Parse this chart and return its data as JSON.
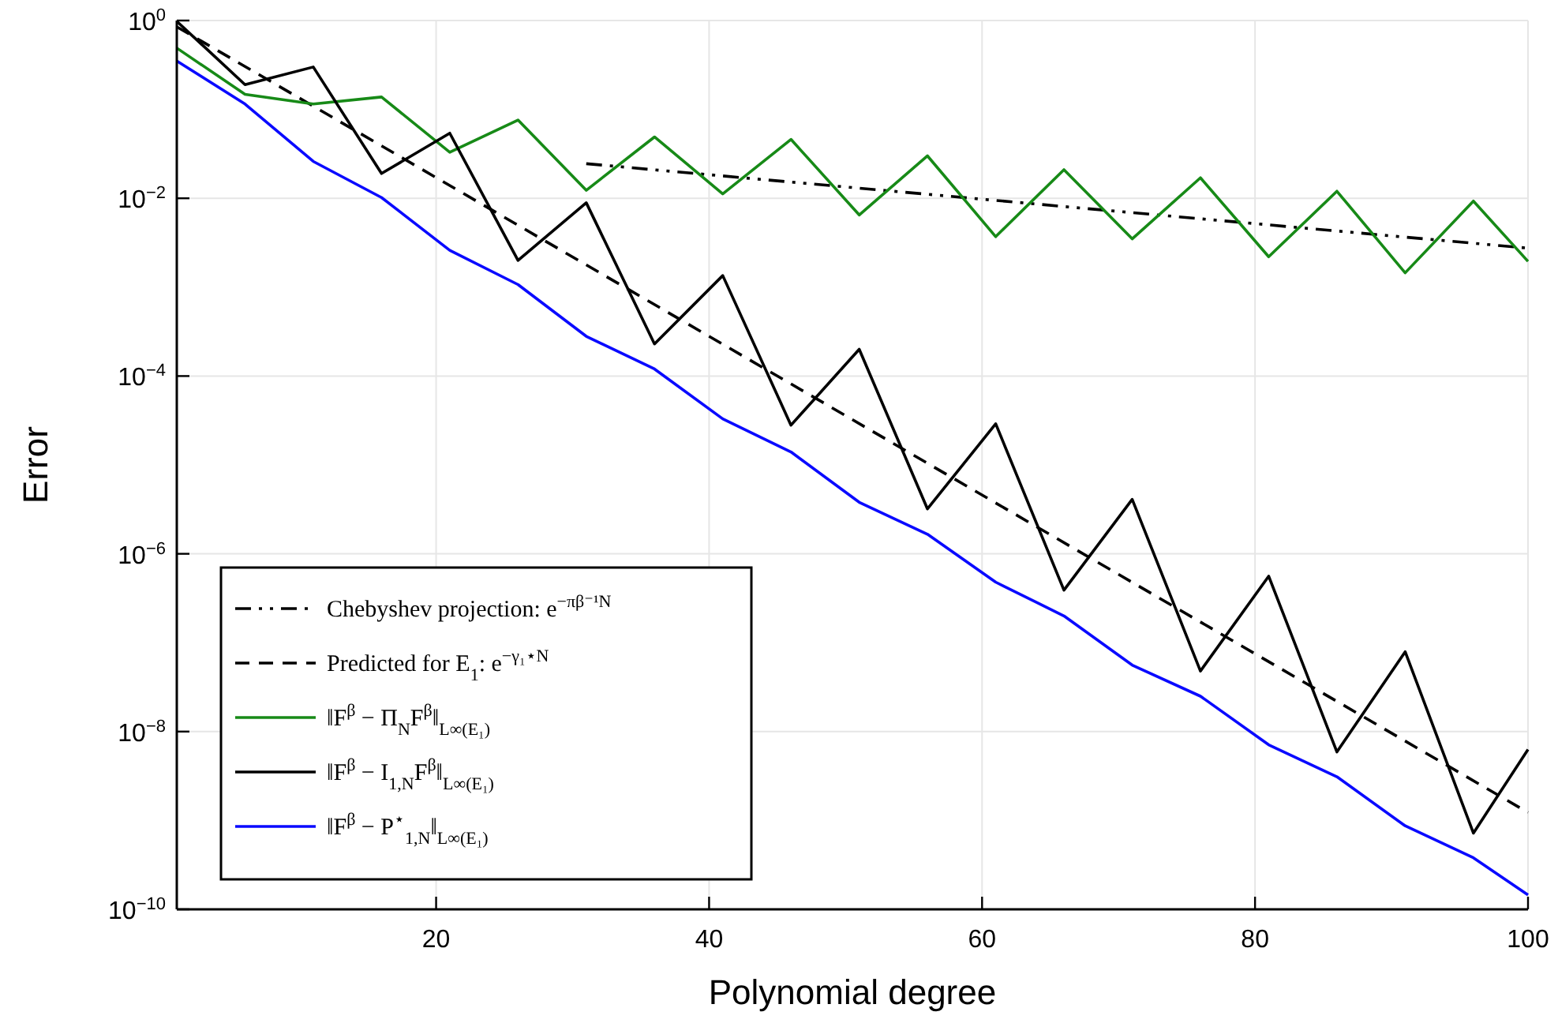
{
  "chart_data": {
    "type": "line",
    "xlabel": "Polynomial degree",
    "ylabel": "Error",
    "log": "y",
    "grid": true,
    "legend": "bottom left",
    "xlim": [
      1,
      100
    ],
    "xticks": [
      20,
      40,
      60,
      80,
      100
    ],
    "ylim": [
      1e-10,
      1
    ],
    "yticks": [
      {
        "value": 1e-10,
        "label": "10$^{−10}$"
      },
      {
        "value": 1e-08,
        "label": "10$^{−8}$"
      },
      {
        "value": 1e-06,
        "label": "10$^{−6}$"
      },
      {
        "value": 0.0001,
        "label": "10$^{−4}$"
      },
      {
        "value": 0.01,
        "label": "10$^{−2}$"
      },
      {
        "value": 1,
        "label": "10$^{0}$"
      }
    ],
    "series": [
      {
        "name": "Chebyshev projection: e$^{−πβ⁻¹N}$",
        "color": "#000000",
        "line_style": "dashdot",
        "x": [
          31,
          100
        ],
        "values": [
          0.0245,
          0.00275
        ]
      },
      {
        "name": "Predicted for E$_{1}$: e$^{−γ₁⋆N}$",
        "color": "#000000",
        "line_style": "dashed",
        "x": [
          1,
          100
        ],
        "values": [
          0.85,
          1.23e-09
        ]
      },
      {
        "name": "‖F$^{β}$ − Π$_{N}$F$^{β}$‖$_{L∞(E₁)}$",
        "color": "#178a17",
        "line_style": "solid",
        "x": [
          1,
          6,
          11,
          16,
          21,
          26,
          31,
          36,
          41,
          46,
          51,
          56,
          61,
          66,
          71,
          76,
          81,
          86,
          91,
          96,
          100
        ],
        "values": [
          0.49,
          0.148,
          0.115,
          0.138,
          0.033,
          0.076,
          0.0123,
          0.049,
          0.0112,
          0.046,
          0.0065,
          0.03,
          0.0037,
          0.021,
          0.0035,
          0.017,
          0.0022,
          0.012,
          0.00145,
          0.0093,
          0.00195
        ]
      },
      {
        "name": "‖F$^{β}$ − I$_{1,N}$F$^{β}$‖$_{L∞(E₁)}$",
        "color": "#000000",
        "line_style": "solid",
        "x": [
          1,
          6,
          11,
          16,
          21,
          26,
          31,
          36,
          41,
          46,
          51,
          56,
          61,
          66,
          71,
          76,
          81,
          86,
          91,
          96,
          100
        ],
        "values": [
          0.98,
          0.19,
          0.3,
          0.019,
          0.054,
          0.002,
          0.0089,
          0.00023,
          0.00135,
          2.8e-05,
          0.0002,
          3.2e-06,
          2.9e-05,
          3.9e-07,
          4.1e-06,
          4.8e-08,
          5.6e-07,
          5.9e-09,
          7.9e-08,
          7.2e-10,
          6.3e-09
        ]
      },
      {
        "name": "‖F$^{β}$ − P$^{⋆}$$_{1,N}$‖$_{L∞(E₁)}$",
        "color": "#0a0aff",
        "line_style": "solid",
        "x": [
          1,
          6,
          11,
          16,
          21,
          26,
          31,
          36,
          41,
          46,
          51,
          56,
          61,
          66,
          71,
          76,
          81,
          86,
          91,
          96,
          100
        ],
        "values": [
          0.35,
          0.115,
          0.026,
          0.0102,
          0.0026,
          0.00107,
          0.00028,
          0.00012,
          3.3e-05,
          1.4e-05,
          3.8e-06,
          1.66e-06,
          4.8e-07,
          2e-07,
          5.6e-08,
          2.5e-08,
          7.1e-09,
          3.1e-09,
          8.7e-10,
          3.8e-10,
          1.45e-10
        ]
      }
    ]
  }
}
